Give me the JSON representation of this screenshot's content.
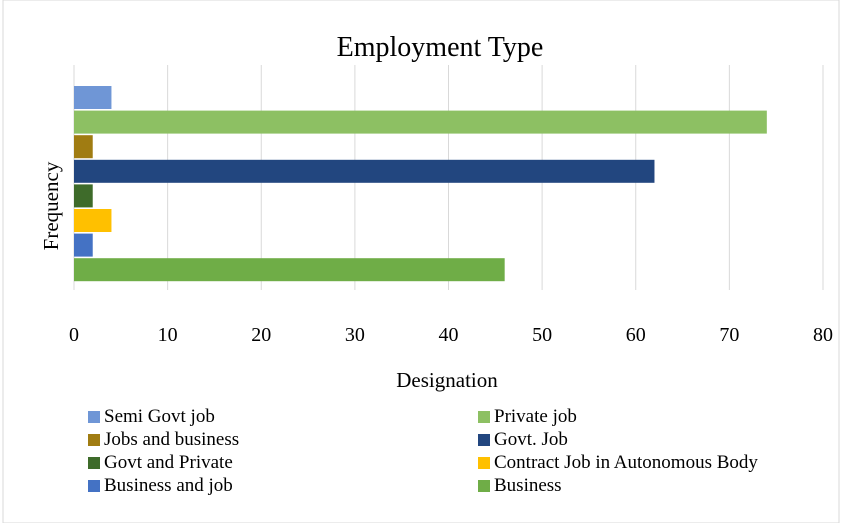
{
  "chart_data": {
    "type": "bar",
    "orientation": "horizontal",
    "title": "Employment Type",
    "xlabel": "Designation",
    "ylabel": "Frequency",
    "xlim": [
      0,
      80
    ],
    "xticks": [
      0,
      10,
      20,
      30,
      40,
      50,
      60,
      70,
      80
    ],
    "grid": true,
    "legend_position": "bottom",
    "series": [
      {
        "name": "Semi Govt job",
        "value": 4,
        "color": "#6F96D6"
      },
      {
        "name": "Private job",
        "value": 74,
        "color": "#8DC063"
      },
      {
        "name": "Jobs and business",
        "value": 2,
        "color": "#A07C12"
      },
      {
        "name": "Govt. Job",
        "value": 62,
        "color": "#22467F"
      },
      {
        "name": "Govt and Private",
        "value": 2,
        "color": "#3E6B2A"
      },
      {
        "name": "Contract Job in Autonomous Body",
        "value": 4,
        "color": "#FFC000"
      },
      {
        "name": "Business and job",
        "value": 2,
        "color": "#4472C4"
      },
      {
        "name": "Business",
        "value": 46,
        "color": "#6FAD47"
      }
    ]
  }
}
